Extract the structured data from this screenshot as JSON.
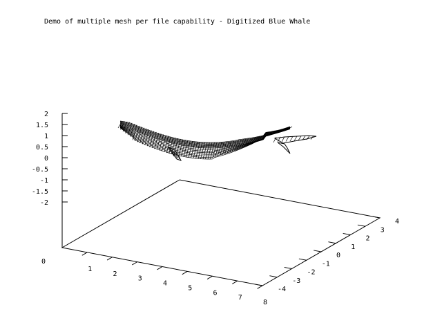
{
  "chart_data": {
    "type": "surface3d",
    "title": "Demo of multiple mesh per file capability - Digitized Blue Whale",
    "xlabel": "",
    "ylabel": "",
    "zlabel": "",
    "x_ticks": [
      "1",
      "2",
      "3",
      "4",
      "5",
      "6",
      "7",
      "8"
    ],
    "y_ticks": [
      "-4",
      "-3",
      "-2",
      "-1",
      "0",
      "1",
      "2",
      "3",
      "4"
    ],
    "z_ticks": [
      "2",
      "1.5",
      "1",
      "0.5",
      "0",
      "-0.5",
      "-1",
      "-1.5",
      "-2"
    ],
    "corner_label": "0",
    "xlim": [
      0,
      8
    ],
    "ylim": [
      -4,
      4
    ],
    "zlim": [
      -2,
      2
    ],
    "grid": false,
    "series": [
      {
        "object": "whale",
        "style": "wireframe mesh",
        "color": "#000000"
      }
    ]
  }
}
